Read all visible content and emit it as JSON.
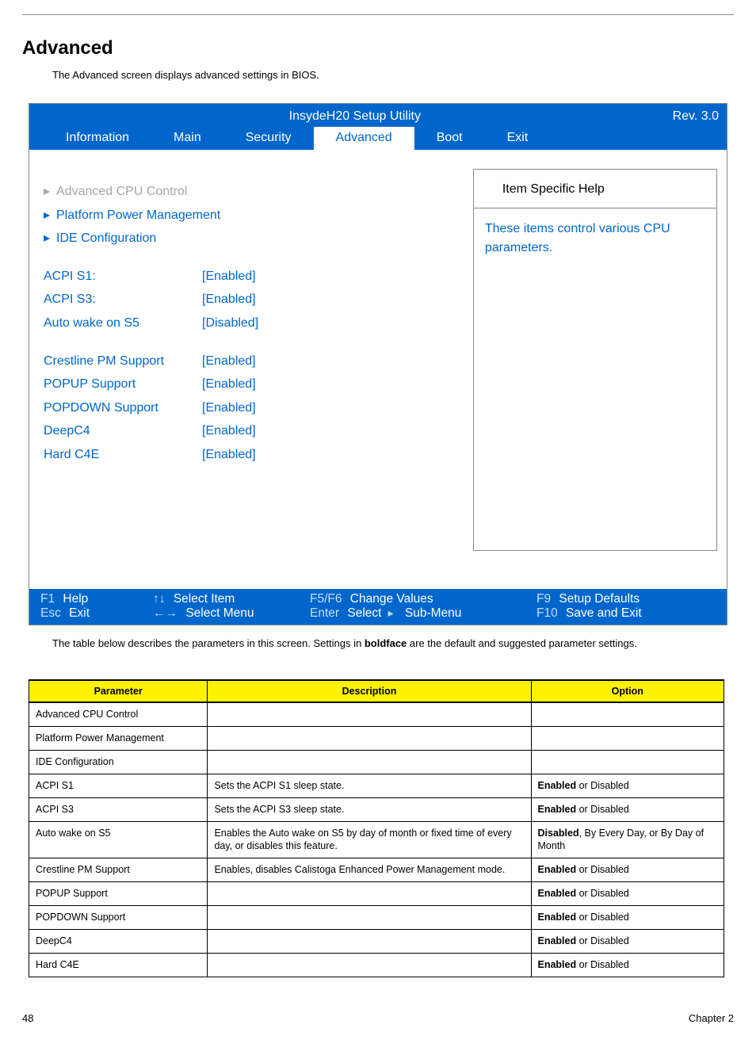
{
  "page": {
    "section_title": "Advanced",
    "intro_text": "The Advanced screen displays advanced settings in BIOS.",
    "below_text_pre": "The table below describes the parameters in this screen. Settings in ",
    "below_text_bold": "boldface",
    "below_text_post": " are the default and suggested parameter settings.",
    "page_number": "48",
    "chapter_label": "Chapter 2"
  },
  "bios": {
    "utility_name": "InsydeH20 Setup Utility",
    "revision": "Rev. 3.0",
    "tabs": [
      "Information",
      "Main",
      "Security",
      "Advanced",
      "Boot",
      "Exit"
    ],
    "active_tab_index": 3,
    "submenus": [
      {
        "label": "Advanced CPU Control",
        "selected": true
      },
      {
        "label": "Platform Power Management",
        "selected": false
      },
      {
        "label": "IDE Configuration",
        "selected": false
      }
    ],
    "settings_group1": [
      {
        "label": "ACPI  S1:",
        "value": "[Enabled]"
      },
      {
        "label": "ACPI  S3:",
        "value": "[Enabled]"
      },
      {
        "label": "Auto wake on S5",
        "value": "[Disabled]"
      }
    ],
    "settings_group2": [
      {
        "label": "Crestline PM Support",
        "value": "[Enabled]"
      },
      {
        "label": "POPUP Support",
        "value": "[Enabled]"
      },
      {
        "label": "POPDOWN Support",
        "value": "[Enabled]"
      },
      {
        "label": "DeepC4",
        "value": "[Enabled]"
      },
      {
        "label": "Hard C4E",
        "value": "[Enabled]"
      }
    ],
    "help": {
      "heading": "Item Specific Help",
      "body": "These items control various CPU parameters."
    },
    "footer": {
      "f1": "F1",
      "help": "Help",
      "updown": "↑↓",
      "select_item": "Select Item",
      "f5f6": "F5/F6",
      "change_values": "Change Values",
      "f9": "F9",
      "setup_defaults": "Setup Defaults",
      "esc": "Esc",
      "exit": "Exit",
      "leftright": "←→",
      "select_menu": "Select Menu",
      "enter": "Enter",
      "select_label": "Select",
      "submenu": "Sub-Menu",
      "f10": "F10",
      "save_exit": "Save and Exit"
    }
  },
  "param_table": {
    "headers": [
      "Parameter",
      "Description",
      "Option"
    ],
    "rows": [
      {
        "p": "Advanced CPU Control",
        "d": "",
        "o_bold": "",
        "o_rest": ""
      },
      {
        "p": "Platform Power Management",
        "d": "",
        "o_bold": "",
        "o_rest": ""
      },
      {
        "p": "IDE Configuration",
        "d": "",
        "o_bold": "",
        "o_rest": ""
      },
      {
        "p": "ACPI S1",
        "d": "Sets the ACPI S1 sleep state.",
        "o_bold": "Enabled",
        "o_rest": " or Disabled"
      },
      {
        "p": "ACPI S3",
        "d": "Sets the ACPI S3 sleep state.",
        "o_bold": "Enabled",
        "o_rest": " or Disabled"
      },
      {
        "p": "Auto wake on S5",
        "d": "Enables the Auto wake on S5 by day of month or fixed time of every day, or disables this feature.",
        "o_bold": "Disabled",
        "o_rest": ", By Every Day, or By Day of Month"
      },
      {
        "p": "Crestline PM Support",
        "d": "Enables, disables Calistoga Enhanced Power Management mode.",
        "o_bold": "Enabled",
        "o_rest": " or Disabled"
      },
      {
        "p": "POPUP Support",
        "d": "",
        "o_bold": "Enabled",
        "o_rest": " or Disabled"
      },
      {
        "p": "POPDOWN Support",
        "d": "",
        "o_bold": "Enabled",
        "o_rest": " or Disabled"
      },
      {
        "p": "DeepC4",
        "d": "",
        "o_bold": "Enabled",
        "o_rest": " or Disabled"
      },
      {
        "p": "Hard C4E",
        "d": "",
        "o_bold": "Enabled",
        "o_rest": " or Disabled"
      }
    ]
  }
}
